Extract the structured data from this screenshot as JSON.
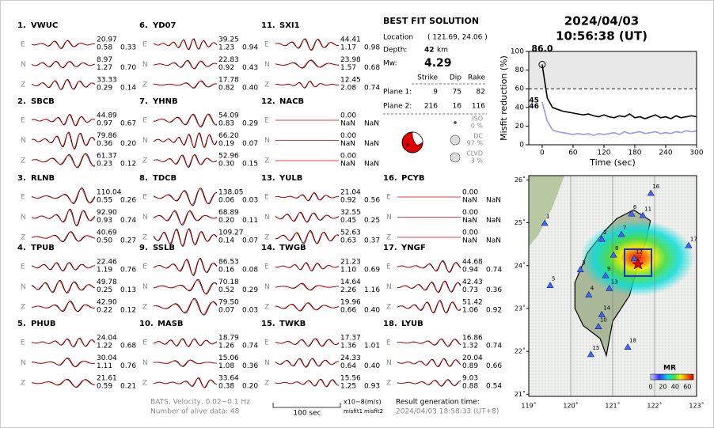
{
  "header": {
    "date": "2024/04/03",
    "time": "10:56:38  (UT)"
  },
  "stations": [
    {
      "num": "1.",
      "name": "VWUC",
      "components": [
        [
          "E",
          "20.97",
          "0.58",
          "0.33"
        ],
        [
          "N",
          "8.97",
          "1.27",
          "0.70"
        ],
        [
          "Z",
          "33.33",
          "0.29",
          "0.14"
        ]
      ]
    },
    {
      "num": "2.",
      "name": "SBCB",
      "components": [
        [
          "E",
          "44.89",
          "0.97",
          "0.67"
        ],
        [
          "N",
          "79.86",
          "0.36",
          "0.20"
        ],
        [
          "Z",
          "61.37",
          "0.23",
          "0.12"
        ]
      ]
    },
    {
      "num": "3.",
      "name": "RLNB",
      "components": [
        [
          "E",
          "110.04",
          "0.55",
          "0.26"
        ],
        [
          "N",
          "92.90",
          "0.93",
          "0.74"
        ],
        [
          "Z",
          "40.69",
          "0.50",
          "0.27"
        ]
      ]
    },
    {
      "num": "4.",
      "name": "TPUB",
      "components": [
        [
          "E",
          "22.46",
          "1.19",
          "0.76"
        ],
        [
          "N",
          "49.78",
          "0.25",
          "0.13"
        ],
        [
          "Z",
          "42.90",
          "0.22",
          "0.12"
        ]
      ]
    },
    {
      "num": "5.",
      "name": "PHUB",
      "components": [
        [
          "E",
          "24.04",
          "1.22",
          "0.68"
        ],
        [
          "N",
          "30.04",
          "1.11",
          "0.76"
        ],
        [
          "Z",
          "21.61",
          "0.59",
          "0.21"
        ]
      ]
    },
    {
      "num": "6.",
      "name": "YD07",
      "components": [
        [
          "E",
          "39.25",
          "1.23",
          "0.94"
        ],
        [
          "N",
          "22.83",
          "0.92",
          "0.43"
        ],
        [
          "Z",
          "17.78",
          "0.82",
          "0.40"
        ]
      ]
    },
    {
      "num": "7.",
      "name": "YHNB",
      "components": [
        [
          "E",
          "54.09",
          "0.83",
          "0.29"
        ],
        [
          "N",
          "66.20",
          "0.19",
          "0.07"
        ],
        [
          "Z",
          "52.96",
          "0.30",
          "0.15"
        ]
      ]
    },
    {
      "num": "8.",
      "name": "TDCB",
      "components": [
        [
          "E",
          "138.05",
          "0.06",
          "0.03"
        ],
        [
          "N",
          "68.89",
          "0.20",
          "0.11"
        ],
        [
          "Z",
          "109.27",
          "0.14",
          "0.07"
        ]
      ]
    },
    {
      "num": "9.",
      "name": "SSLB",
      "components": [
        [
          "E",
          "86.53",
          "0.16",
          "0.08"
        ],
        [
          "N",
          "70.18",
          "0.52",
          "0.29"
        ],
        [
          "Z",
          "79.50",
          "0.07",
          "0.03"
        ]
      ]
    },
    {
      "num": "10.",
      "name": "MASB",
      "components": [
        [
          "E",
          "18.79",
          "1.26",
          "0.74"
        ],
        [
          "N",
          "15.06",
          "1.08",
          "0.36"
        ],
        [
          "Z",
          "33.64",
          "0.38",
          "0.20"
        ]
      ]
    },
    {
      "num": "11.",
      "name": "SXI1",
      "components": [
        [
          "E",
          "44.41",
          "1.17",
          "0.98"
        ],
        [
          "N",
          "23.98",
          "1.57",
          "0.68"
        ],
        [
          "Z",
          "12.45",
          "2.08",
          "0.74"
        ]
      ]
    },
    {
      "num": "12.",
      "name": "NACB",
      "components": [
        [
          "E",
          "0.00",
          "NaN",
          "NaN"
        ],
        [
          "N",
          "0.00",
          "NaN",
          "NaN"
        ],
        [
          "Z",
          "0.00",
          "NaN",
          "NaN"
        ]
      ]
    },
    {
      "num": "13.",
      "name": "YULB",
      "components": [
        [
          "E",
          "21.04",
          "0.92",
          "0.56"
        ],
        [
          "N",
          "32.55",
          "0.45",
          "0.25"
        ],
        [
          "Z",
          "52.63",
          "0.63",
          "0.37"
        ]
      ]
    },
    {
      "num": "14.",
      "name": "TWGB",
      "components": [
        [
          "E",
          "21.23",
          "1.10",
          "0.69"
        ],
        [
          "N",
          "14.64",
          "2.26",
          "1.16"
        ],
        [
          "Z",
          "19.96",
          "0.66",
          "0.40"
        ]
      ]
    },
    {
      "num": "15.",
      "name": "TWKB",
      "components": [
        [
          "E",
          "17.37",
          "1.36",
          "1.01"
        ],
        [
          "N",
          "24.33",
          "0.64",
          "0.40"
        ],
        [
          "Z",
          "15.56",
          "1.25",
          "0.93"
        ]
      ]
    },
    {
      "num": "16.",
      "name": "PCYB",
      "components": [
        [
          "E",
          "0.00",
          "NaN",
          "NaN"
        ],
        [
          "N",
          "0.00",
          "NaN",
          "NaN"
        ],
        [
          "Z",
          "0.00",
          "NaN",
          "NaN"
        ]
      ]
    },
    {
      "num": "17.",
      "name": "YNGF",
      "components": [
        [
          "E",
          "44.68",
          "0.94",
          "0.74"
        ],
        [
          "N",
          "42.43",
          "0.73",
          "0.36"
        ],
        [
          "Z",
          "51.42",
          "1.06",
          "0.92"
        ]
      ]
    },
    {
      "num": "18.",
      "name": "LYUB",
      "components": [
        [
          "E",
          "16.86",
          "1.32",
          "0.74"
        ],
        [
          "N",
          "20.04",
          "0.89",
          "0.66"
        ],
        [
          "Z",
          "9.03",
          "0.88",
          "0.54"
        ]
      ]
    }
  ],
  "solution": {
    "title": "BEST FIT SOLUTION",
    "location_label": "Location",
    "location": "( 121.69, 24.06 )",
    "depth_label": "Depth:",
    "depth": "42",
    "depth_unit": "km",
    "mw_label": "Mw:",
    "mw": "4.29",
    "columns": [
      "Strike",
      "Dip",
      "Rake"
    ],
    "planes": [
      [
        "Plane 1:",
        "9",
        "75",
        "82"
      ],
      [
        "Plane 2:",
        "216",
        "16",
        "116"
      ]
    ],
    "components": [
      [
        "ISO",
        "0 %"
      ],
      [
        "DC",
        "97 %"
      ],
      [
        "CLVD",
        "3 %"
      ]
    ]
  },
  "footer": {
    "source": "BATS, Velocity, 0.02~0.1 Hz",
    "alive": "Number of alive data: 48",
    "scale": "100 sec",
    "unit": "x10−8(m/s)",
    "misfit1": "misfit1",
    "misfit2": "misfit2",
    "result_label": "Result generation time:",
    "result_time": "2024/04/03 18:58:33 (UT+8)"
  },
  "chart_data": {
    "type": "line",
    "xlabel": "Time (sec)",
    "ylabel": "Misfit reduction (%)",
    "x": [
      0,
      10,
      20,
      30,
      40,
      50,
      60,
      70,
      80,
      90,
      100,
      110,
      120,
      130,
      140,
      150,
      160,
      170,
      180,
      190,
      200,
      210,
      220,
      230,
      240,
      250,
      260,
      270,
      280,
      290,
      300
    ],
    "series": [
      {
        "color": "#ffffff",
        "values": [
          45,
          30,
          25,
          22,
          20,
          20,
          19,
          20,
          18,
          19,
          18,
          20,
          19,
          18,
          19,
          20,
          18,
          19,
          20,
          21,
          19,
          20,
          19,
          20,
          21,
          19,
          20,
          21,
          20,
          22,
          21
        ]
      },
      {
        "color": "#9999ee",
        "values": [
          46,
          25,
          16,
          14,
          13,
          12,
          11,
          12,
          11,
          12,
          10,
          12,
          11,
          12,
          13,
          11,
          14,
          12,
          13,
          14,
          12,
          13,
          14,
          12,
          13,
          12,
          14,
          13,
          15,
          14,
          15
        ]
      },
      {
        "color": "#000000",
        "values": [
          86,
          50,
          40,
          38,
          36,
          35,
          34,
          33,
          32,
          33,
          31,
          30,
          32,
          30,
          29,
          31,
          30,
          33,
          29,
          30,
          28,
          30,
          32,
          29,
          30,
          28,
          31,
          29,
          30,
          31,
          30
        ]
      }
    ],
    "annotations": [
      {
        "text": "86.0",
        "color": "#e00000"
      },
      {
        "text": "45",
        "color": "#aaaaaa"
      },
      {
        "text": "46",
        "color": "#9999ee"
      }
    ],
    "threshold": 60,
    "xlim": [
      -26,
      300
    ],
    "ylim": [
      0,
      100
    ],
    "xticks": [
      0,
      60,
      120,
      180,
      240,
      300
    ],
    "yticks": [
      0,
      20,
      40,
      60,
      80,
      100
    ]
  },
  "map": {
    "xlim": [
      119,
      123
    ],
    "ylim": [
      20.95,
      26.1
    ],
    "xticks": [
      {
        "value": 119,
        "label": "119˚"
      },
      {
        "value": 120,
        "label": "120˚"
      },
      {
        "value": 121,
        "label": "121˚"
      },
      {
        "value": 122,
        "label": "122˚"
      },
      {
        "value": 123,
        "label": "123˚"
      }
    ],
    "yticks": [
      {
        "value": 21,
        "label": "21˚"
      },
      {
        "value": 22,
        "label": "22˚"
      },
      {
        "value": 23,
        "label": "23˚"
      },
      {
        "value": 24,
        "label": "24˚"
      },
      {
        "value": 25,
        "label": "25˚"
      },
      {
        "value": 26,
        "label": "26˚"
      }
    ],
    "stations": [
      {
        "label": "1",
        "lon": 119.38,
        "lat": 24.99
      },
      {
        "label": "2",
        "lon": 120.74,
        "lat": 24.62
      },
      {
        "label": "3",
        "lon": 120.23,
        "lat": 23.91
      },
      {
        "label": "4",
        "lon": 120.43,
        "lat": 23.32
      },
      {
        "label": "5",
        "lon": 119.51,
        "lat": 23.54
      },
      {
        "label": "6",
        "lon": 121.45,
        "lat": 25.21
      },
      {
        "label": "7",
        "lon": 121.21,
        "lat": 24.73
      },
      {
        "label": "8",
        "lon": 121.02,
        "lat": 24.25
      },
      {
        "label": "9",
        "lon": 120.83,
        "lat": 23.77
      },
      {
        "label": "10",
        "lon": 120.66,
        "lat": 22.58
      },
      {
        "label": "11",
        "lon": 121.72,
        "lat": 25.17
      },
      {
        "label": "12",
        "lon": 121.51,
        "lat": 24.17
      },
      {
        "label": "13",
        "lon": 120.92,
        "lat": 23.47
      },
      {
        "label": "14",
        "lon": 120.74,
        "lat": 22.86
      },
      {
        "label": "15",
        "lon": 120.48,
        "lat": 21.93
      },
      {
        "label": "16",
        "lon": 121.91,
        "lat": 25.69
      },
      {
        "label": "17",
        "lon": 122.81,
        "lat": 24.47
      },
      {
        "label": "18",
        "lon": 121.36,
        "lat": 22.1
      }
    ],
    "colorbar": {
      "title": "MR",
      "clim": [
        0,
        70
      ],
      "ticks": [
        0,
        20,
        40,
        60
      ]
    }
  }
}
